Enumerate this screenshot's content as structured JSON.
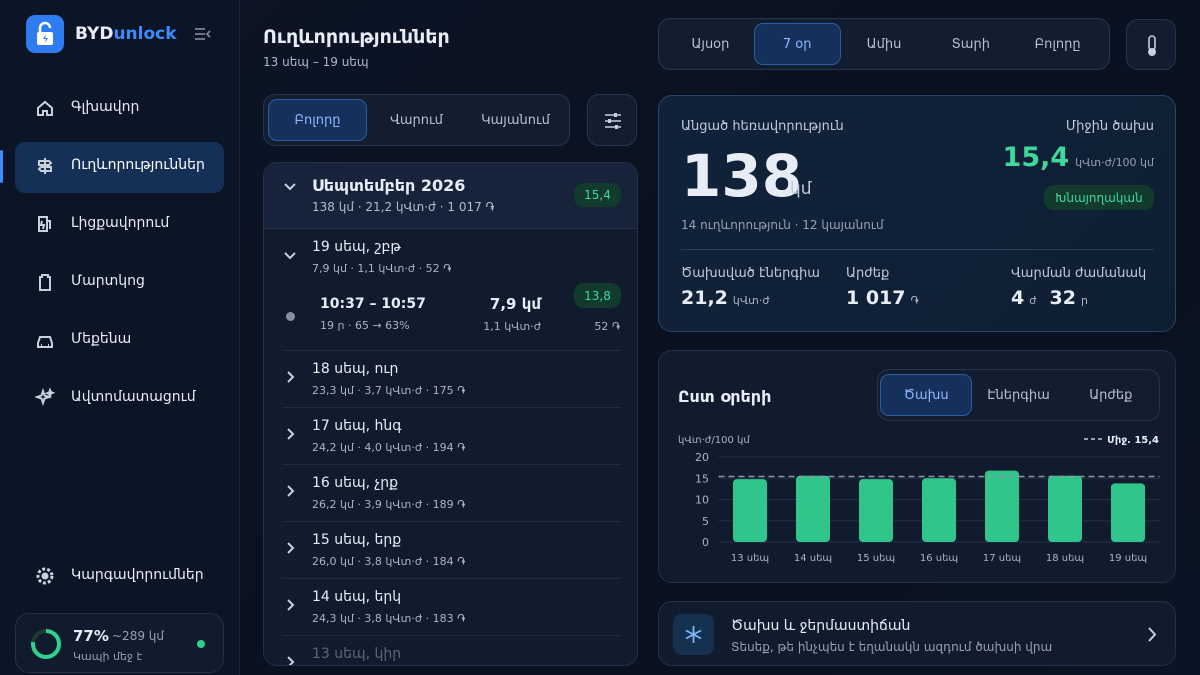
{
  "sidebar": {
    "brand_primary": "BYD",
    "brand_accent": "unlock",
    "nav": [
      "Գլխավոր",
      "Ուղևորություններ",
      "Լիցքավորում",
      "Մարտկոց",
      "Մեքենա",
      "Ավտոմատացում"
    ],
    "nav_active": 1,
    "settings": "Կարգավորումներ",
    "battery": {
      "level": 77,
      "level_label": "77%",
      "range": "~289 կմ",
      "status": "Կապի մեջ է"
    }
  },
  "header": {
    "title": "Ուղևորություններ",
    "subtitle": "13 սեպ – 19 սեպ"
  },
  "period_tabs": {
    "items": [
      "Այսօր",
      "7 օր",
      "Ամիս",
      "Տարի",
      "Բոլորը"
    ],
    "active": 1
  },
  "filter_tabs": {
    "items": [
      "Բոլորը",
      "Վարում",
      "Կայանում"
    ],
    "active": 0
  },
  "trips": {
    "month": {
      "title": "Սեպտեմբեր 2026",
      "summary": "138 կմ · 21,2 կՎտ·ժ · 1 017 ֏",
      "badge": "15,4"
    },
    "days": [
      {
        "label": "19 սեպ, շբթ",
        "summary": "7,9 կմ · 1,1 կՎտ·ժ · 52 ֏",
        "trips": [
          {
            "time": "10:37 – 10:57",
            "detail": "19 ր · 65 → 63%",
            "distance": "7,9 կմ",
            "energy": "1,1 կՎտ·ժ",
            "badge": "13,8",
            "cost": "52 ֏"
          }
        ]
      },
      {
        "label": "18 սեպ, ուր",
        "summary": "23,3 կմ · 3,7 կՎտ·ժ · 175 ֏"
      },
      {
        "label": "17 սեպ, հնգ",
        "summary": "24,2 կմ · 4,0 կՎտ·ժ · 194 ֏"
      },
      {
        "label": "16 սեպ, չրք",
        "summary": "26,2 կմ · 3,9 կՎտ·ժ · 189 ֏"
      },
      {
        "label": "15 սեպ, երք",
        "summary": "26,0 կմ · 3,8 կՎտ·ժ · 184 ֏"
      },
      {
        "label": "14 սեպ, երկ",
        "summary": "24,3 կմ · 3,8 կՎտ·ժ · 183 ֏"
      },
      {
        "label": "13 սեպ, կիր"
      }
    ]
  },
  "summary": {
    "distance_label": "Անցած հեռավորություն",
    "distance": "138",
    "distance_unit": "կմ",
    "counts": "14 ուղևորություն · 12 կայանում",
    "avg_label": "Միջին ծախս",
    "avg": "15,4",
    "avg_unit": "կՎտ·ժ/100 կմ",
    "avg_badge": "Խնայողական",
    "stats": [
      {
        "label": "Ծախսված էներգիա",
        "parts": [
          [
            "21,2",
            "կՎտ·ժ"
          ]
        ]
      },
      {
        "label": "Արժեք",
        "parts": [
          [
            "1 017",
            "֏"
          ]
        ]
      },
      {
        "label": "Վարման ժամանակ",
        "parts": [
          [
            "4",
            "ժ"
          ],
          [
            "32",
            "ր"
          ]
        ]
      }
    ]
  },
  "chart_data": {
    "type": "bar",
    "title": "Ըստ օրերի",
    "tabs": [
      "Ծախս",
      "Էներգիա",
      "Արժեք"
    ],
    "tab_active": 0,
    "y_label": "կՎտ·ժ/100 կմ",
    "average": 15.4,
    "average_label": "Միջ. 15,4",
    "categories": [
      "13 սեպ",
      "14 սեպ",
      "15 սեպ",
      "16 սեպ",
      "17 սեպ",
      "18 սեպ",
      "19 սեպ"
    ],
    "values": [
      14.8,
      15.6,
      14.8,
      15.0,
      16.8,
      15.6,
      13.8
    ],
    "color": "#2fc58b",
    "ylim": [
      0,
      20
    ],
    "yticks": [
      0,
      5,
      10,
      15,
      20
    ],
    "grid": true
  },
  "promo": {
    "title": "Ծախս և ջերմաստիճան",
    "text": "Տեսեք, թե ինչպես է եղանակն ազդում ծախսի վրա"
  }
}
